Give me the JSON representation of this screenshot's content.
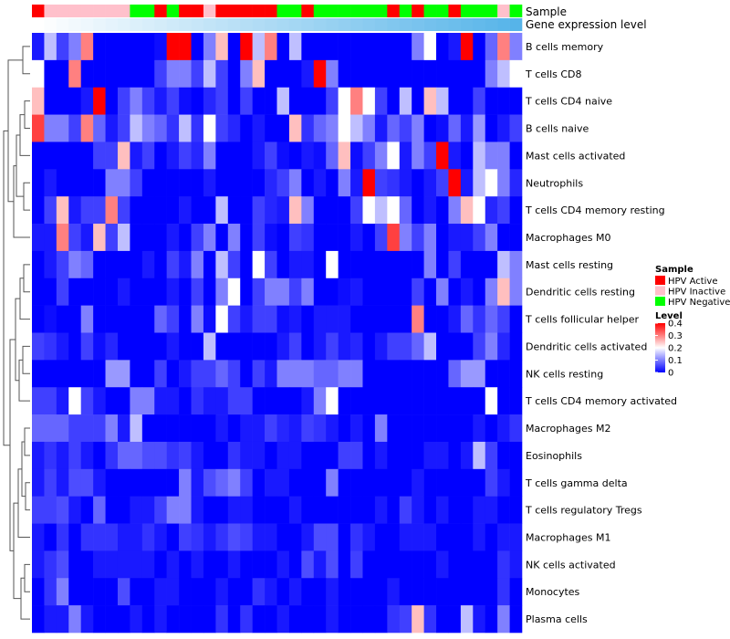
{
  "chart_data": {
    "type": "heatmap",
    "annotation_labels": [
      "Sample",
      "Gene expression level"
    ],
    "rows": [
      "B cells memory",
      "T cells CD8",
      "T cells CD4 naive",
      "B cells naive",
      "Mast cells activated",
      "Neutrophils",
      "T cells CD4 memory resting",
      "Macrophages M0",
      "Mast cells resting",
      "Dendritic cells resting",
      "T cells follicular helper",
      "Dendritic cells activated",
      "NK cells resting",
      "T cells CD4 memory activated",
      "Macrophages M2",
      "Eosinophils",
      "T cells gamma delta",
      "T cells regulatory  Tregs",
      "Macrophages M1",
      "NK cells activated",
      "Monocytes",
      "Plasma cells"
    ],
    "sample_groups": [
      "HPV Active",
      "HPV Inactive",
      "HPV Inactive",
      "HPV Inactive",
      "HPV Inactive",
      "HPV Inactive",
      "HPV Inactive",
      "HPV Inactive",
      "HPV Negative",
      "HPV Negative",
      "HPV Active",
      "HPV Negative",
      "HPV Active",
      "HPV Active",
      "HPV Inactive",
      "HPV Active",
      "HPV Active",
      "HPV Active",
      "HPV Active",
      "HPV Active",
      "HPV Negative",
      "HPV Negative",
      "HPV Active",
      "HPV Negative",
      "HPV Negative",
      "HPV Negative",
      "HPV Negative",
      "HPV Negative",
      "HPV Negative",
      "HPV Active",
      "HPV Negative",
      "HPV Active",
      "HPV Negative",
      "HPV Negative",
      "HPV Active",
      "HPV Negative",
      "HPV Negative",
      "HPV Negative",
      "HPV Inactive",
      "HPV Negative"
    ],
    "expression_levels": [
      0.06,
      0.07,
      0.08,
      0.09,
      0.1,
      0.11,
      0.12,
      0.13,
      0.14,
      0.15,
      0.16,
      0.17,
      0.18,
      0.19,
      0.2,
      0.21,
      0.22,
      0.23,
      0.24,
      0.25,
      0.26,
      0.27,
      0.28,
      0.29,
      0.3,
      0.31,
      0.32,
      0.33,
      0.34,
      0.35,
      0.36,
      0.37,
      0.38,
      0.39,
      0.4,
      0.41,
      0.42,
      0.43,
      0.44,
      0.45
    ],
    "values": [
      [
        0.02,
        0.15,
        0.05,
        0.1,
        0.3,
        0,
        0,
        0,
        0,
        0,
        0.01,
        0.4,
        0.4,
        0,
        0.1,
        0.25,
        0,
        0.4,
        0.15,
        0.3,
        0,
        0.15,
        0,
        0,
        0,
        0,
        0,
        0,
        0,
        0,
        0,
        0.1,
        0.2,
        0,
        0.02,
        0.4,
        0,
        0.08,
        0.3,
        0.1
      ],
      [
        0.2,
        0,
        0,
        0.3,
        0,
        0,
        0,
        0,
        0,
        0,
        0.05,
        0.1,
        0.1,
        0.05,
        0.15,
        0.05,
        0,
        0.1,
        0.25,
        0,
        0,
        0,
        0.02,
        0.4,
        0.1,
        0,
        0,
        0,
        0,
        0,
        0,
        0,
        0,
        0,
        0,
        0,
        0,
        0.1,
        0.15,
        0.2
      ],
      [
        0.25,
        0,
        0,
        0,
        0.02,
        0.4,
        0,
        0.05,
        0.1,
        0.05,
        0.02,
        0.05,
        0.01,
        0,
        0.03,
        0.05,
        0,
        0.05,
        0,
        0,
        0.15,
        0,
        0,
        0,
        0.05,
        0.2,
        0.3,
        0.2,
        0.05,
        0,
        0.15,
        0,
        0.25,
        0.15,
        0,
        0,
        0.05,
        0,
        0,
        0
      ],
      [
        0.35,
        0.1,
        0.1,
        0.05,
        0.3,
        0.08,
        0.02,
        0.05,
        0.15,
        0.1,
        0.08,
        0.04,
        0.15,
        0.04,
        0.2,
        0.05,
        0.03,
        0,
        0.02,
        0,
        0,
        0.25,
        0.04,
        0.08,
        0.1,
        0.2,
        0.15,
        0.1,
        0.02,
        0.08,
        0.05,
        0.1,
        0,
        0.01,
        0.08,
        0.02,
        0.12,
        0,
        0.02,
        0.05
      ],
      [
        0,
        0,
        0,
        0,
        0,
        0.05,
        0.05,
        0.25,
        0.02,
        0.05,
        0,
        0.02,
        0.05,
        0.03,
        0.1,
        0,
        0,
        0,
        0.02,
        0.05,
        0.01,
        0,
        0.02,
        0.01,
        0.08,
        0.25,
        0.01,
        0.05,
        0.1,
        0.2,
        0.02,
        0.1,
        0.05,
        0.4,
        0.02,
        0,
        0.15,
        0.1,
        0.1,
        0
      ],
      [
        0,
        0.02,
        0,
        0,
        0,
        0,
        0.1,
        0.1,
        0.05,
        0,
        0,
        0,
        0,
        0,
        0.02,
        0,
        0,
        0,
        0,
        0.03,
        0.05,
        0.1,
        0,
        0.02,
        0,
        0.1,
        0.02,
        0.4,
        0.05,
        0.04,
        0.02,
        0,
        0.02,
        0.05,
        0.4,
        0.02,
        0.15,
        0.2,
        0.1,
        0.03
      ],
      [
        0,
        0.05,
        0.25,
        0.02,
        0.05,
        0.05,
        0.3,
        0.05,
        0,
        0,
        0,
        0,
        0.02,
        0,
        0,
        0.15,
        0,
        0,
        0.05,
        0.03,
        0.02,
        0.25,
        0.1,
        0,
        0,
        0,
        0.05,
        0.2,
        0.15,
        0.2,
        0.08,
        0,
        0.02,
        0,
        0.1,
        0.25,
        0.2,
        0.03,
        0.05,
        0
      ],
      [
        0.02,
        0.02,
        0.3,
        0.05,
        0.02,
        0.25,
        0.05,
        0.15,
        0,
        0,
        0,
        0.02,
        0,
        0.05,
        0.1,
        0,
        0.1,
        0,
        0.05,
        0.01,
        0,
        0.05,
        0.04,
        0,
        0,
        0,
        0.02,
        0,
        0.05,
        0.35,
        0.1,
        0.05,
        0.1,
        0,
        0.02,
        0.02,
        0.05,
        0.1,
        0,
        0
      ],
      [
        0,
        0.02,
        0.05,
        0.1,
        0.08,
        0,
        0,
        0,
        0,
        0.02,
        0,
        0.05,
        0.02,
        0.1,
        0,
        0.15,
        0.05,
        0,
        0.2,
        0.05,
        0,
        0.02,
        0.02,
        0,
        0.2,
        0,
        0,
        0,
        0,
        0,
        0,
        0,
        0.1,
        0,
        0.05,
        0,
        0,
        0,
        0.15,
        0.1
      ],
      [
        0,
        0,
        0.05,
        0,
        0,
        0,
        0,
        0.02,
        0,
        0,
        0,
        0.02,
        0,
        0.05,
        0,
        0.1,
        0.2,
        0,
        0.05,
        0.1,
        0.1,
        0.05,
        0.1,
        0,
        0,
        0.01,
        0.02,
        0,
        0,
        0,
        0,
        0.05,
        0,
        0.1,
        0,
        0.02,
        0,
        0.1,
        0.25,
        0.1
      ],
      [
        0,
        0.01,
        0,
        0,
        0.1,
        0,
        0,
        0,
        0,
        0,
        0.08,
        0.05,
        0,
        0.1,
        0.01,
        0.2,
        0.05,
        0.02,
        0.05,
        0.05,
        0.01,
        0.02,
        0,
        0.02,
        0.02,
        0.02,
        0,
        0,
        0,
        0,
        0,
        0.3,
        0,
        0,
        0.02,
        0.08,
        0.04,
        0.08,
        0.05,
        0
      ],
      [
        0.05,
        0.04,
        0.02,
        0,
        0.05,
        0.01,
        0.03,
        0,
        0,
        0,
        0,
        0.02,
        0,
        0,
        0.15,
        0,
        0,
        0,
        0,
        0,
        0.02,
        0.05,
        0,
        0.02,
        0.05,
        0.02,
        0.03,
        0,
        0.02,
        0.05,
        0.05,
        0.08,
        0.15,
        0,
        0,
        0,
        0.05,
        0.1,
        0.03,
        0
      ],
      [
        0,
        0,
        0,
        0,
        0,
        0,
        0.12,
        0.12,
        0,
        0,
        0.05,
        0,
        0.02,
        0.05,
        0.05,
        0.08,
        0.05,
        0,
        0.05,
        0.02,
        0.1,
        0.1,
        0.1,
        0.08,
        0.08,
        0.1,
        0.1,
        0,
        0,
        0,
        0,
        0,
        0,
        0,
        0.08,
        0.12,
        0.12,
        0,
        0,
        0
      ],
      [
        0.05,
        0.05,
        0.02,
        0.2,
        0.05,
        0.02,
        0,
        0,
        0.1,
        0.1,
        0.02,
        0.02,
        0,
        0.04,
        0.02,
        0.02,
        0.05,
        0.05,
        0,
        0,
        0,
        0,
        0.02,
        0.1,
        0.2,
        0,
        0,
        0,
        0,
        0,
        0,
        0,
        0,
        0,
        0,
        0,
        0,
        0.2,
        0,
        0
      ],
      [
        0.08,
        0.08,
        0.08,
        0.05,
        0.05,
        0.05,
        0.1,
        0.02,
        0.15,
        0,
        0,
        0,
        0,
        0,
        0,
        0.02,
        0,
        0.02,
        0.02,
        0.05,
        0.03,
        0.02,
        0.05,
        0.04,
        0.02,
        0,
        0.02,
        0,
        0.1,
        0,
        0,
        0,
        0,
        0,
        0,
        0,
        0.02,
        0,
        0.02,
        0.04
      ],
      [
        0.02,
        0.04,
        0.02,
        0.05,
        0.02,
        0,
        0.04,
        0.08,
        0.08,
        0.06,
        0.06,
        0.04,
        0.05,
        0.02,
        0,
        0,
        0.04,
        0.02,
        0.02,
        0,
        0.02,
        0.02,
        0,
        0,
        0,
        0.05,
        0.05,
        0,
        0.02,
        0,
        0,
        0,
        0.02,
        0.02,
        0,
        0.02,
        0.15,
        0.05,
        0,
        0
      ],
      [
        0.02,
        0.05,
        0.02,
        0.06,
        0.06,
        0.02,
        0,
        0,
        0,
        0,
        0,
        0,
        0.1,
        0.02,
        0.06,
        0.08,
        0.1,
        0.05,
        0,
        0.02,
        0.02,
        0,
        0,
        0,
        0.1,
        0,
        0,
        0,
        0,
        0,
        0,
        0.02,
        0,
        0,
        0,
        0,
        0,
        0.05,
        0.02,
        0
      ],
      [
        0.05,
        0.05,
        0.06,
        0.02,
        0,
        0.08,
        0,
        0,
        0.02,
        0.02,
        0.05,
        0.1,
        0.1,
        0.02,
        0,
        0,
        0.02,
        0.02,
        0,
        0,
        0,
        0.02,
        0,
        0,
        0,
        0,
        0,
        0,
        0.02,
        0,
        0.05,
        0.02,
        0,
        0.02,
        0,
        0,
        0.02,
        0.02,
        0,
        0
      ],
      [
        0.02,
        0,
        0.04,
        0,
        0.04,
        0.04,
        0.04,
        0.02,
        0.02,
        0.04,
        0.02,
        0,
        0.05,
        0.04,
        0.02,
        0.04,
        0.06,
        0.05,
        0.02,
        0.02,
        0,
        0,
        0.02,
        0.06,
        0.06,
        0,
        0.04,
        0.02,
        0,
        0,
        0.02,
        0.02,
        0.02,
        0,
        0,
        0,
        0.02,
        0,
        0.02,
        0.02
      ],
      [
        0.02,
        0.04,
        0.06,
        0,
        0,
        0.02,
        0.02,
        0.02,
        0.02,
        0.02,
        0,
        0.02,
        0,
        0.02,
        0,
        0,
        0.02,
        0,
        0,
        0,
        0.02,
        0,
        0.06,
        0.02,
        0.06,
        0,
        0.05,
        0,
        0,
        0,
        0,
        0,
        0,
        0.02,
        0,
        0,
        0,
        0,
        0.04,
        0.02
      ],
      [
        0,
        0.04,
        0.1,
        0,
        0,
        0,
        0,
        0.06,
        0,
        0,
        0.02,
        0.02,
        0,
        0,
        0,
        0.02,
        0,
        0,
        0.04,
        0.02,
        0,
        0.02,
        0,
        0,
        0.02,
        0,
        0,
        0,
        0,
        0.02,
        0,
        0,
        0,
        0,
        0,
        0,
        0,
        0,
        0.04,
        0
      ],
      [
        0,
        0.02,
        0.02,
        0.1,
        0.02,
        0,
        0,
        0,
        0.02,
        0,
        0.02,
        0,
        0,
        0,
        0,
        0.04,
        0,
        0.04,
        0,
        0,
        0.02,
        0,
        0,
        0,
        0.02,
        0,
        0,
        0,
        0,
        0.04,
        0.05,
        0.25,
        0.04,
        0,
        0,
        0.15,
        0.02,
        0,
        0.1,
        0
      ]
    ],
    "legend": {
      "sample_title": "Sample",
      "groups": [
        {
          "name": "HPV Active",
          "color": "#ff0000"
        },
        {
          "name": "HPV Inactive",
          "color": "#ffc0cb"
        },
        {
          "name": "HPV Negative",
          "color": "#00ff00"
        }
      ],
      "level_title": "Level",
      "level_ticks": [
        0.4,
        0.3,
        0.2,
        0.1,
        0
      ],
      "level_range": [
        0,
        0.4
      ]
    },
    "colors": {
      "low": "#0000ff",
      "mid": "#ffffff",
      "high": "#ff0000",
      "expr_low": "#ffffff",
      "expr_high": "#56b4e9"
    }
  }
}
